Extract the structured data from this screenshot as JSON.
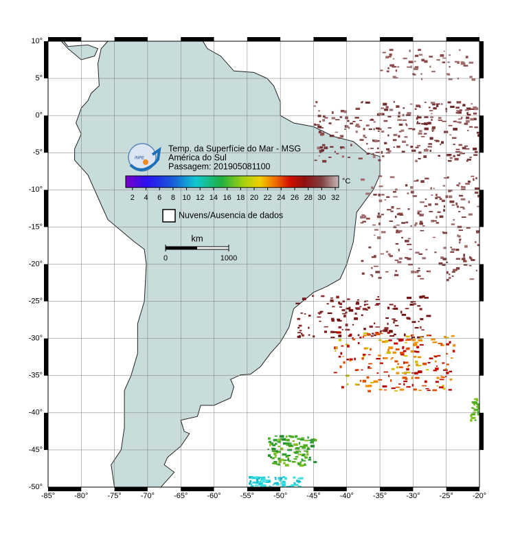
{
  "map": {
    "title": "Temp. da Superfície do Mar - MSG",
    "subtitle": "América do Sul",
    "pass": "Passagem: 201905081100",
    "logo": "INPE",
    "lon_range": [
      -85,
      -20
    ],
    "lat_range": [
      -50,
      10
    ],
    "lon_ticks": [
      {
        "value": -85,
        "label": "-85°"
      },
      {
        "value": -80,
        "label": "-80°"
      },
      {
        "value": -75,
        "label": "-75°"
      },
      {
        "value": -70,
        "label": "-70°"
      },
      {
        "value": -65,
        "label": "-65°"
      },
      {
        "value": -60,
        "label": "-60°"
      },
      {
        "value": -55,
        "label": "-55°"
      },
      {
        "value": -50,
        "label": "-50°"
      },
      {
        "value": -45,
        "label": "-45°"
      },
      {
        "value": -40,
        "label": "-40°"
      },
      {
        "value": -35,
        "label": "-35°"
      },
      {
        "value": -30,
        "label": "-30°"
      },
      {
        "value": -25,
        "label": "-25°"
      },
      {
        "value": -20,
        "label": "-20°"
      }
    ],
    "lat_ticks": [
      {
        "value": 10,
        "label": "10°"
      },
      {
        "value": 5,
        "label": "5°"
      },
      {
        "value": 0,
        "label": "0°"
      },
      {
        "value": -5,
        "label": "-5°"
      },
      {
        "value": -10,
        "label": "-10°"
      },
      {
        "value": -15,
        "label": "-15°"
      },
      {
        "value": -20,
        "label": "-20°"
      },
      {
        "value": -25,
        "label": "-25°"
      },
      {
        "value": -30,
        "label": "-30°"
      },
      {
        "value": -35,
        "label": "-35°"
      },
      {
        "value": -40,
        "label": "-40°"
      },
      {
        "value": -45,
        "label": "-45°"
      },
      {
        "value": -50,
        "label": "-50°"
      }
    ],
    "colorbar": {
      "unit": "°C",
      "range": [
        1,
        32.5
      ],
      "ticks": [
        2,
        4,
        6,
        8,
        10,
        12,
        14,
        16,
        18,
        20,
        22,
        24,
        26,
        28,
        30,
        32
      ]
    },
    "legend": "Nuvens/Ausencia de dados",
    "scale": {
      "unit": "km",
      "ticks": [
        0,
        1000
      ]
    }
  }
}
